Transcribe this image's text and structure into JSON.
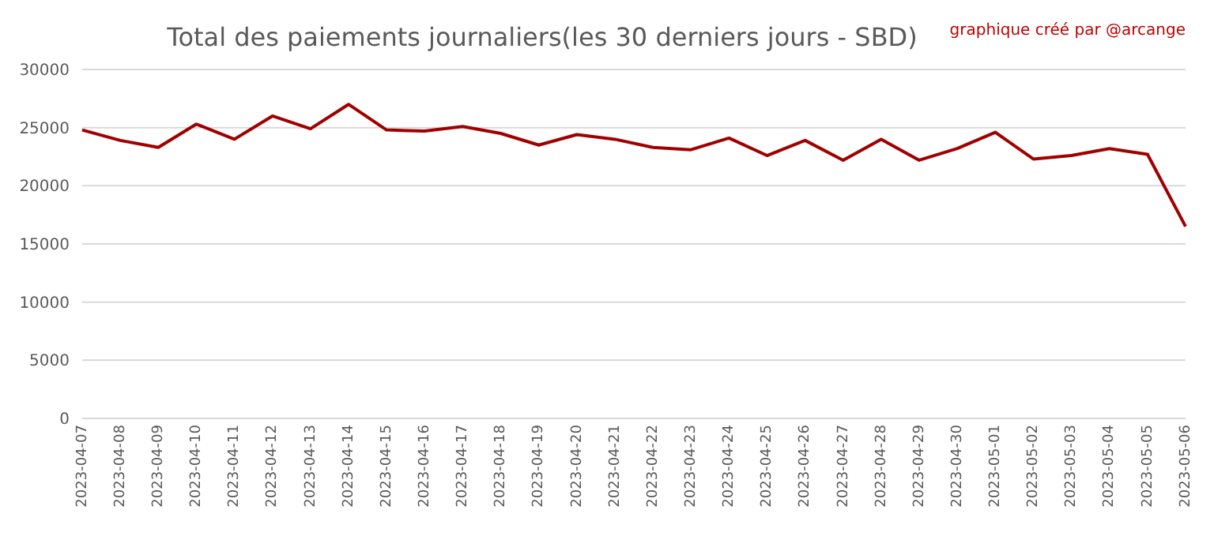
{
  "chart_data": {
    "type": "line",
    "title": "Total des paiements journaliers(les 30 derniers jours - SBD)",
    "annotations": [
      "graphique créé par @arcange"
    ],
    "categories": [
      "2023-04-07",
      "2023-04-08",
      "2023-04-09",
      "2023-04-10",
      "2023-04-11",
      "2023-04-12",
      "2023-04-13",
      "2023-04-14",
      "2023-04-15",
      "2023-04-16",
      "2023-04-17",
      "2023-04-18",
      "2023-04-19",
      "2023-04-20",
      "2023-04-21",
      "2023-04-22",
      "2023-04-23",
      "2023-04-24",
      "2023-04-25",
      "2023-04-26",
      "2023-04-27",
      "2023-04-28",
      "2023-04-29",
      "2023-04-30",
      "2023-05-01",
      "2023-05-02",
      "2023-05-03",
      "2023-05-04",
      "2023-05-05",
      "2023-05-06"
    ],
    "series": [
      {
        "color": "#a00000",
        "values": [
          24800,
          23900,
          23300,
          25300,
          24000,
          26000,
          24900,
          27000,
          24800,
          24700,
          25100,
          24500,
          23500,
          24400,
          24000,
          23300,
          23100,
          24100,
          22600,
          23900,
          22200,
          24000,
          22200,
          23200,
          24600,
          22300,
          22600,
          23200,
          22700,
          16500
        ]
      }
    ],
    "ylim": [
      0,
      30000
    ],
    "yticks": [
      0,
      5000,
      10000,
      15000,
      20000,
      25000,
      30000
    ],
    "grid": "y",
    "marker": "none",
    "line_style": "solid"
  }
}
